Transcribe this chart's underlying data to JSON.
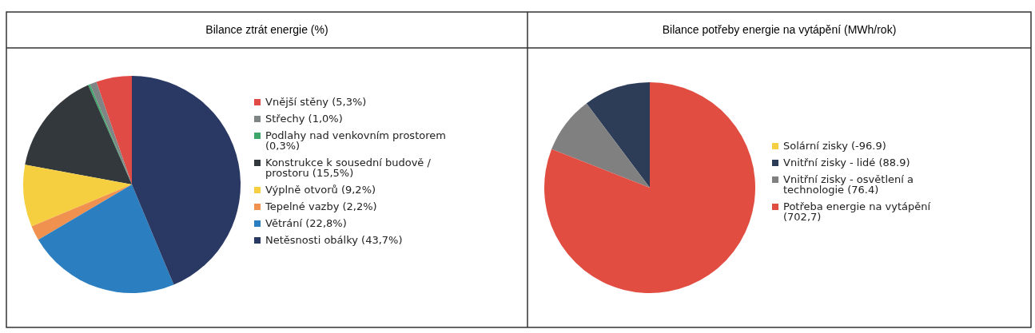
{
  "chart_data": [
    {
      "type": "pie",
      "title": "Bilance ztrát energie (%)",
      "legend": "right",
      "categories": [
        "Vnější stěny",
        "Střechy",
        "Podlahy nad venkovním prostorem",
        "Konstrukce k sousední budově / prostoru",
        "Výplně otvorů",
        "Tepelné vazby",
        "Větrání",
        "Netěsnosti obálky"
      ],
      "values": [
        5.3,
        1.0,
        0.3,
        15.5,
        9.2,
        2.2,
        22.8,
        43.7
      ],
      "value_labels": [
        "(5,3%)",
        "(1,0%)",
        "(0,3%)",
        "(15,5%)",
        "(9,2%)",
        "(2,2%)",
        "(22,8%)",
        "(43,7%)"
      ],
      "colors": [
        "#e04b45",
        "#7f8484",
        "#3fa56a",
        "#33383d",
        "#f5cf3f",
        "#f0914f",
        "#2b7fc0",
        "#2a3964"
      ]
    },
    {
      "type": "pie",
      "title": "Bilance potřeby energie na vytápění (MWh/rok)",
      "legend": "right",
      "categories": [
        "Solární zisky",
        "Vnitřní zisky - lidé",
        "Vnitřní zisky - osvětlení a technologie",
        "Potřeba energie na vytápění"
      ],
      "values": [
        null,
        88.9,
        76.4,
        702.7
      ],
      "value_labels": [
        "(-96.9)",
        "(88.9)",
        "(76.4)",
        "(702,7)"
      ],
      "colors": [
        "#f5cf3f",
        "#2d3d58",
        "#808080",
        "#e24d42"
      ]
    }
  ]
}
